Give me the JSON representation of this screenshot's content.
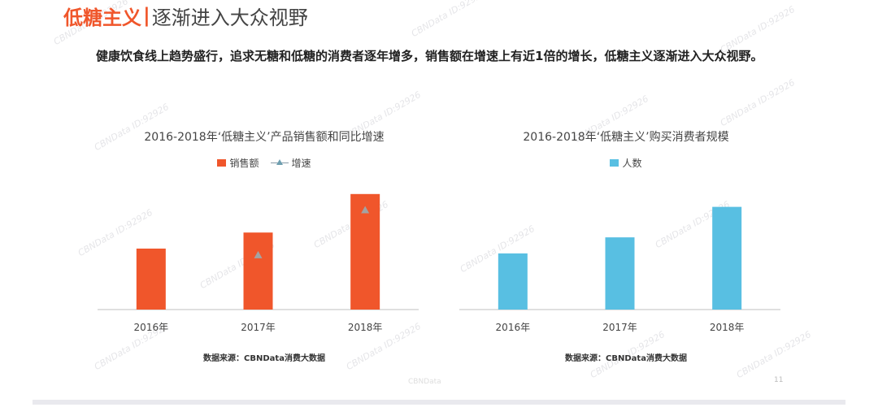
{
  "header": {
    "title_accent": "低糖主义",
    "title_separator": "|",
    "title_rest": "逐渐进入大众视野",
    "subtitle": "健康饮食线上趋势盛行，追求无糖和低糖的消费者逐年增多，销售额在增速上有近1倍的增长，低糖主义逐渐进入大众视野。"
  },
  "watermark": "CBNData ID:92926",
  "page_number": "11",
  "faint_logo": "CBNData",
  "colors": {
    "accent": "#f0562b",
    "blue": "#58bfe2",
    "marker": "#a3a3a3"
  },
  "chart_data": [
    {
      "type": "bar",
      "title": "2016-2018年‘低糖主义’产品销售额和同比增速",
      "categories": [
        "2016年",
        "2017年",
        "2018年"
      ],
      "series": [
        {
          "name": "销售额",
          "kind": "bar",
          "values": [
            38,
            48,
            72
          ]
        },
        {
          "name": "增速",
          "kind": "marker",
          "values": [
            null,
            34,
            62
          ]
        }
      ],
      "legend_position": "top-center",
      "source": "数据来源：CBNData消费大数据",
      "ylim": [
        0,
        80
      ],
      "grid": false
    },
    {
      "type": "bar",
      "title": "2016-2018年‘低糖主义’购买消费者规模",
      "categories": [
        "2016年",
        "2017年",
        "2018年"
      ],
      "series": [
        {
          "name": "人数",
          "kind": "bar",
          "values": [
            35,
            45,
            64
          ]
        }
      ],
      "legend_position": "top-center",
      "source": "数据来源：CBNData消费大数据",
      "ylim": [
        0,
        80
      ],
      "grid": false
    }
  ]
}
